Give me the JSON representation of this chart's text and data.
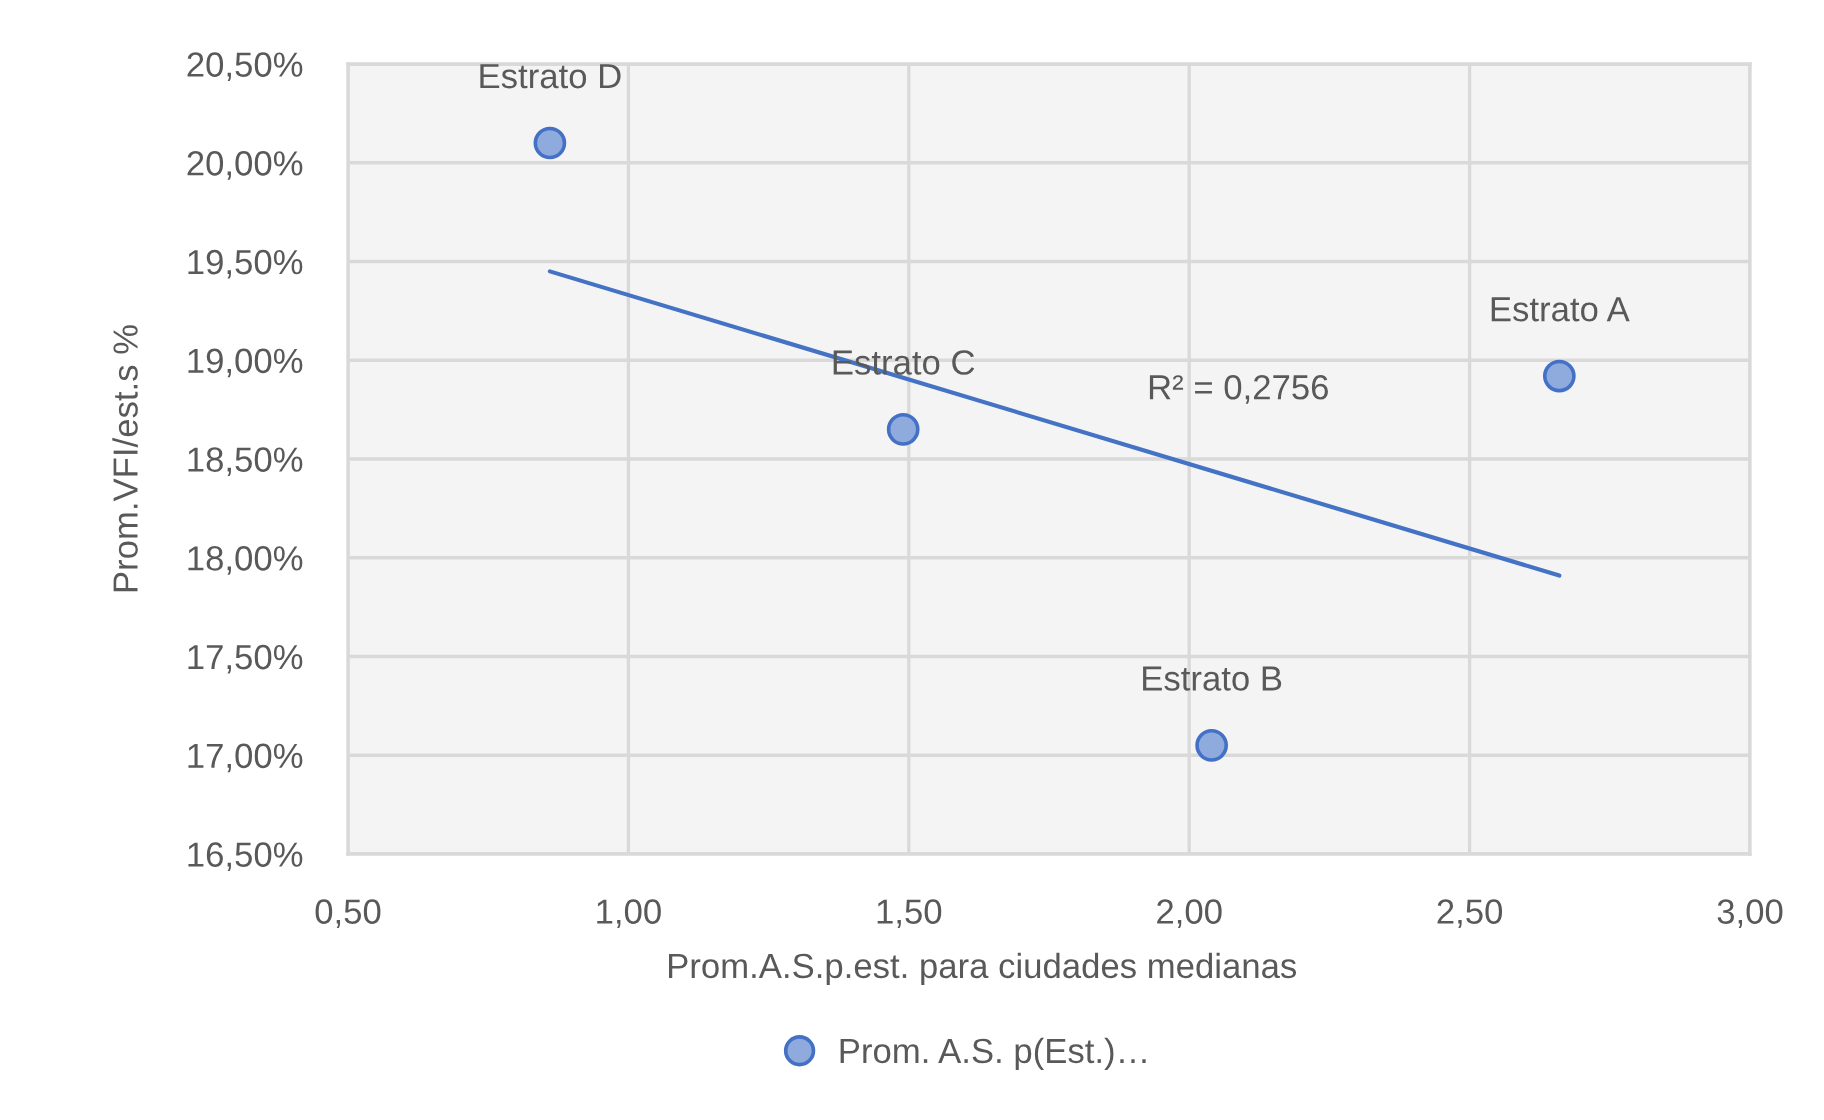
{
  "chart_data": {
    "type": "scatter",
    "xlabel": "Prom.A.S.p.est. para ciudades medianas",
    "ylabel": "Prom.VFI/est.s %",
    "annotations": [
      {
        "text": "Estrato D",
        "x": 0.86,
        "y": 20.1
      },
      {
        "text": "Estrato C",
        "x": 1.49,
        "y": 18.65
      },
      {
        "text": "Estrato B",
        "x": 2.04,
        "y": 17.05
      },
      {
        "text": "Estrato A",
        "x": 2.66,
        "y": 18.92
      },
      "R² = 0,2756"
    ],
    "series": [
      {
        "name": "Prom. A.S. p(Est.)…",
        "color": "#8faadc",
        "x": [
          0.86,
          1.49,
          2.04,
          2.66
        ],
        "values": [
          20.1,
          18.65,
          17.05,
          18.92
        ]
      },
      {
        "type": "line",
        "color": "#4472c4",
        "x": [
          0.86,
          2.66
        ],
        "values": [
          19.45,
          17.91
        ],
        "marker": "none"
      }
    ],
    "xlim": [
      0.5,
      3.0
    ],
    "xticks": [
      {
        "value": 0.5,
        "label": "0,50"
      },
      {
        "value": 1.0,
        "label": "1,00"
      },
      {
        "value": 1.5,
        "label": "1,50"
      },
      {
        "value": 2.0,
        "label": "2,00"
      },
      {
        "value": 2.5,
        "label": "2,50"
      },
      {
        "value": 3.0,
        "label": "3,00"
      }
    ],
    "ylim": [
      16.5,
      20.5
    ],
    "yticks": [
      {
        "value": 16.5,
        "label": "16,50%"
      },
      {
        "value": 17.0,
        "label": "17,00%"
      },
      {
        "value": 17.5,
        "label": "17,50%"
      },
      {
        "value": 18.0,
        "label": "18,00%"
      },
      {
        "value": 18.5,
        "label": "18,50%"
      },
      {
        "value": 19.0,
        "label": "19,00%"
      },
      {
        "value": 19.5,
        "label": "19,50%"
      },
      {
        "value": 20.0,
        "label": "20,00%"
      },
      {
        "value": 20.5,
        "label": "20,50%"
      }
    ],
    "grid": true,
    "legend": "bottom",
    "marker": "circle"
  }
}
